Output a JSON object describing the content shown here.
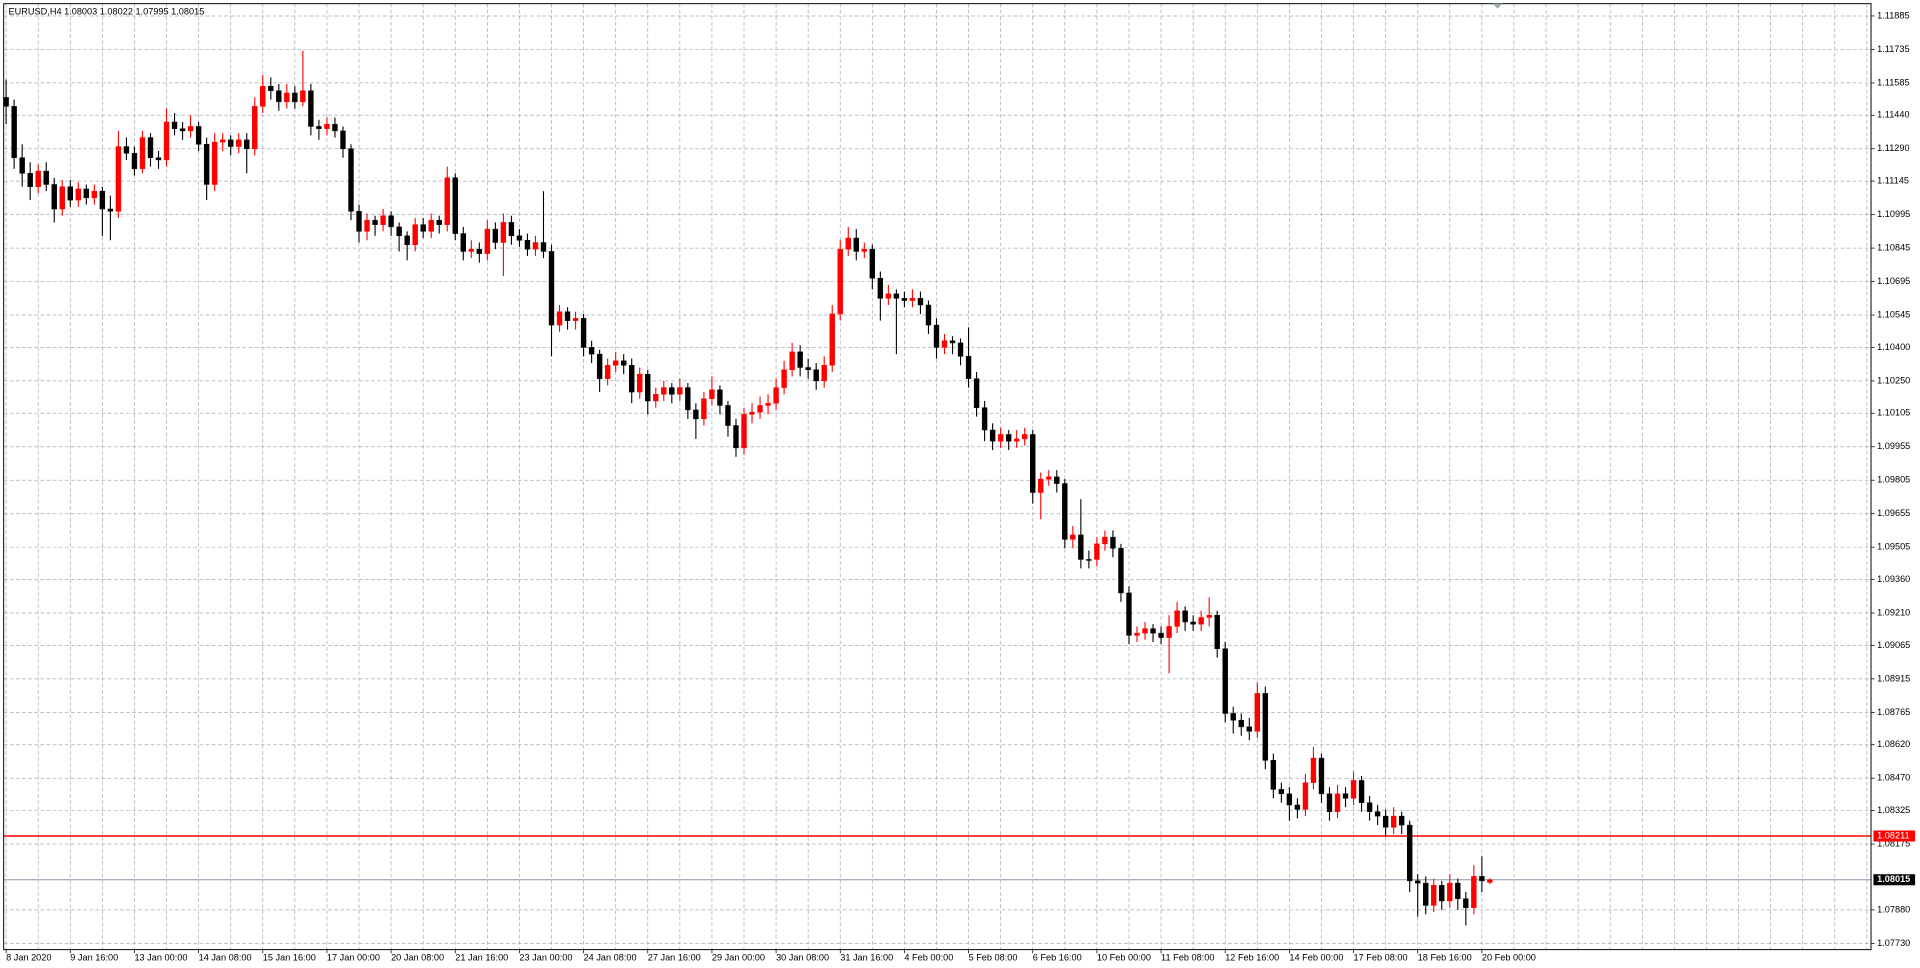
{
  "chart_data": {
    "type": "candlestick",
    "title": "EURUSD,H4  1.08003 1.08022 1.07995 1.08015",
    "up_color": "#ff0000",
    "down_color": "#000000",
    "grid": true,
    "grid_color": "#a3acbb",
    "ylim": [
      1.07702,
      1.1194
    ],
    "yticks": [
      1.11885,
      1.11735,
      1.11585,
      {
        "value": 1.1144,
        "label": "1.11440"
      },
      {
        "value": 1.1129,
        "label": "1.11290"
      },
      1.11145,
      1.10995,
      1.10845,
      1.10695,
      1.10545,
      {
        "value": 1.104,
        "label": "1.10400"
      },
      {
        "value": 1.1025,
        "label": "1.10250"
      },
      1.10105,
      1.09955,
      1.09805,
      1.09655,
      1.09505,
      {
        "value": 1.0936,
        "label": "1.09360"
      },
      {
        "value": 1.0921,
        "label": "1.09210"
      },
      1.09065,
      1.08915,
      1.08765,
      {
        "value": 1.0862,
        "label": "1.08620"
      },
      {
        "value": 1.0847,
        "label": "1.08470"
      },
      1.08325,
      1.08175,
      {
        "value": 1.0788,
        "label": "1.07880"
      },
      {
        "value": 1.0773,
        "label": "1.07730"
      }
    ],
    "price_lines": [
      {
        "value": 1.08211,
        "color": "#ff0000"
      }
    ],
    "bid_line": {
      "value": 1.08015,
      "color": "#8899aa"
    },
    "categories": [
      "8 Jan 2020",
      null,
      null,
      null,
      null,
      null,
      null,
      null,
      "9 Jan 16:00",
      null,
      null,
      null,
      null,
      null,
      null,
      null,
      "13 Jan 00:00",
      null,
      null,
      null,
      null,
      null,
      null,
      null,
      "14 Jan 08:00",
      null,
      null,
      null,
      null,
      null,
      null,
      null,
      "15 Jan 16:00",
      null,
      null,
      null,
      null,
      null,
      null,
      null,
      "17 Jan 00:00",
      null,
      null,
      null,
      null,
      null,
      null,
      null,
      "20 Jan 08:00",
      null,
      null,
      null,
      null,
      null,
      null,
      null,
      "21 Jan 16:00",
      null,
      null,
      null,
      null,
      null,
      null,
      null,
      "23 Jan 00:00",
      null,
      null,
      null,
      null,
      null,
      null,
      null,
      "24 Jan 08:00",
      null,
      null,
      null,
      null,
      null,
      null,
      null,
      "27 Jan 16:00",
      null,
      null,
      null,
      null,
      null,
      null,
      null,
      "29 Jan 00:00",
      null,
      null,
      null,
      null,
      null,
      null,
      null,
      "30 Jan 08:00",
      null,
      null,
      null,
      null,
      null,
      null,
      null,
      "31 Jan 16:00",
      null,
      null,
      null,
      null,
      null,
      null,
      null,
      "4 Feb 00:00",
      null,
      null,
      null,
      null,
      null,
      null,
      null,
      "5 Feb 08:00",
      null,
      null,
      null,
      null,
      null,
      null,
      null,
      "6 Feb 16:00",
      null,
      null,
      null,
      null,
      null,
      null,
      null,
      "10 Feb 00:00",
      null,
      null,
      null,
      null,
      null,
      null,
      null,
      "11 Feb 08:00",
      null,
      null,
      null,
      null,
      null,
      null,
      null,
      "12 Feb 16:00",
      null,
      null,
      null,
      null,
      null,
      null,
      null,
      "14 Feb 00:00",
      null,
      null,
      null,
      null,
      null,
      null,
      null,
      "17 Feb 08:00",
      null,
      null,
      null,
      null,
      null,
      null,
      null,
      "18 Feb 16:00",
      null,
      null,
      null,
      null,
      null,
      null,
      null,
      "20 Feb 00:00",
      null
    ],
    "ohlc": [
      [
        1.1152,
        1.116,
        1.114,
        1.1148
      ],
      [
        1.1148,
        1.1151,
        1.112,
        1.1125
      ],
      [
        1.1125,
        1.1131,
        1.1112,
        1.1118
      ],
      [
        1.1118,
        1.1123,
        1.1106,
        1.1112
      ],
      [
        1.1112,
        1.1122,
        1.1109,
        1.1119
      ],
      [
        1.1119,
        1.1123,
        1.111,
        1.1113
      ],
      [
        1.1113,
        1.1116,
        1.1096,
        1.1102
      ],
      [
        1.1102,
        1.1115,
        1.1099,
        1.1112
      ],
      [
        1.1112,
        1.1115,
        1.1103,
        1.1106
      ],
      [
        1.1106,
        1.1114,
        1.1103,
        1.1111
      ],
      [
        1.1111,
        1.1113,
        1.1104,
        1.1107
      ],
      [
        1.1107,
        1.1113,
        1.1104,
        1.111
      ],
      [
        1.111,
        1.1112,
        1.109,
        1.1102
      ],
      [
        1.1102,
        1.1108,
        1.1088,
        1.1101
      ],
      [
        1.1101,
        1.1137,
        1.1098,
        1.113
      ],
      [
        1.113,
        1.1134,
        1.1124,
        1.1127
      ],
      [
        1.1127,
        1.113,
        1.1117,
        1.112
      ],
      [
        1.112,
        1.1137,
        1.1118,
        1.1134
      ],
      [
        1.1134,
        1.1136,
        1.1121,
        1.1125
      ],
      [
        1.1125,
        1.1128,
        1.112,
        1.1124
      ],
      [
        1.1124,
        1.1147,
        1.1121,
        1.1141
      ],
      [
        1.1141,
        1.1145,
        1.1135,
        1.1138
      ],
      [
        1.1138,
        1.1141,
        1.1133,
        1.1137
      ],
      [
        1.1137,
        1.1144,
        1.1134,
        1.1139
      ],
      [
        1.1139,
        1.1141,
        1.1128,
        1.1131
      ],
      [
        1.1131,
        1.1134,
        1.1106,
        1.1113
      ],
      [
        1.1113,
        1.1136,
        1.111,
        1.1132
      ],
      [
        1.1132,
        1.1136,
        1.1128,
        1.1133
      ],
      [
        1.1133,
        1.1135,
        1.1126,
        1.113
      ],
      [
        1.113,
        1.1136,
        1.1127,
        1.1133
      ],
      [
        1.1133,
        1.1136,
        1.1118,
        1.1129
      ],
      [
        1.1129,
        1.1152,
        1.1126,
        1.1148
      ],
      [
        1.1148,
        1.1162,
        1.1145,
        1.1157
      ],
      [
        1.1157,
        1.1161,
        1.1151,
        1.1155
      ],
      [
        1.1155,
        1.1158,
        1.1146,
        1.115
      ],
      [
        1.115,
        1.1158,
        1.1147,
        1.1154
      ],
      [
        1.1154,
        1.1157,
        1.1147,
        1.115
      ],
      [
        1.115,
        1.1173,
        1.1148,
        1.1155
      ],
      [
        1.1155,
        1.1158,
        1.1135,
        1.1139
      ],
      [
        1.1139,
        1.1142,
        1.1133,
        1.1138
      ],
      [
        1.1138,
        1.1143,
        1.1135,
        1.114
      ],
      [
        1.114,
        1.1143,
        1.1134,
        1.1137
      ],
      [
        1.1137,
        1.1139,
        1.1125,
        1.1129
      ],
      [
        1.1129,
        1.1131,
        1.1097,
        1.1101
      ],
      [
        1.1101,
        1.1104,
        1.1087,
        1.1092
      ],
      [
        1.1092,
        1.11,
        1.1088,
        1.1097
      ],
      [
        1.1097,
        1.1099,
        1.109,
        1.1095
      ],
      [
        1.1095,
        1.1102,
        1.1092,
        1.1099
      ],
      [
        1.1099,
        1.1101,
        1.109,
        1.1094
      ],
      [
        1.1094,
        1.1096,
        1.1083,
        1.109
      ],
      [
        1.109,
        1.1092,
        1.1079,
        1.1086
      ],
      [
        1.1086,
        1.1098,
        1.1083,
        1.1095
      ],
      [
        1.1095,
        1.1098,
        1.1089,
        1.1092
      ],
      [
        1.1092,
        1.11,
        1.1089,
        1.1097
      ],
      [
        1.1097,
        1.1099,
        1.1091,
        1.1095
      ],
      [
        1.1095,
        1.1121,
        1.1092,
        1.1116
      ],
      [
        1.1116,
        1.1118,
        1.1088,
        1.1091
      ],
      [
        1.1091,
        1.1094,
        1.1079,
        1.1083
      ],
      [
        1.1083,
        1.1088,
        1.108,
        1.1084
      ],
      [
        1.1084,
        1.1087,
        1.1078,
        1.1082
      ],
      [
        1.1082,
        1.1097,
        1.1079,
        1.1093
      ],
      [
        1.1093,
        1.1096,
        1.1084,
        1.1087
      ],
      [
        1.1087,
        1.11,
        1.1072,
        1.1096
      ],
      [
        1.1096,
        1.1099,
        1.1086,
        1.109
      ],
      [
        1.109,
        1.1093,
        1.1085,
        1.1088
      ],
      [
        1.1088,
        1.1091,
        1.1081,
        1.1084
      ],
      [
        1.1084,
        1.109,
        1.1081,
        1.1087
      ],
      [
        1.1087,
        1.111,
        1.108,
        1.1083
      ],
      [
        1.1083,
        1.1086,
        1.1036,
        1.105
      ],
      [
        1.105,
        1.1059,
        1.1047,
        1.1056
      ],
      [
        1.1056,
        1.1058,
        1.1048,
        1.1052
      ],
      [
        1.1052,
        1.1056,
        1.1048,
        1.1053
      ],
      [
        1.1053,
        1.1055,
        1.1036,
        1.104
      ],
      [
        1.104,
        1.1043,
        1.1033,
        1.1037
      ],
      [
        1.1037,
        1.1039,
        1.102,
        1.1026
      ],
      [
        1.1026,
        1.1035,
        1.1023,
        1.1032
      ],
      [
        1.1032,
        1.1038,
        1.1029,
        1.1034
      ],
      [
        1.1034,
        1.1037,
        1.1028,
        1.1032
      ],
      [
        1.1032,
        1.1035,
        1.1015,
        1.102
      ],
      [
        1.102,
        1.1031,
        1.1017,
        1.1028
      ],
      [
        1.1028,
        1.103,
        1.101,
        1.1016
      ],
      [
        1.1016,
        1.1022,
        1.1013,
        1.1019
      ],
      [
        1.1019,
        1.1025,
        1.1016,
        1.1022
      ],
      [
        1.1022,
        1.1024,
        1.1015,
        1.1019
      ],
      [
        1.1019,
        1.1026,
        1.1016,
        1.1022
      ],
      [
        1.1022,
        1.1024,
        1.1008,
        1.1012
      ],
      [
        1.1012,
        1.1015,
        1.0999,
        1.1008
      ],
      [
        1.1008,
        1.102,
        1.1005,
        1.1017
      ],
      [
        1.1017,
        1.1027,
        1.1014,
        1.1021
      ],
      [
        1.1021,
        1.1023,
        1.101,
        1.1014
      ],
      [
        1.1014,
        1.1016,
        1.1,
        1.1005
      ],
      [
        1.1005,
        1.1008,
        1.0991,
        1.0995
      ],
      [
        1.0995,
        1.1013,
        1.0992,
        1.101
      ],
      [
        1.101,
        1.1015,
        1.1006,
        1.1011
      ],
      [
        1.1011,
        1.1018,
        1.1008,
        1.1014
      ],
      [
        1.1014,
        1.1019,
        1.101,
        1.1015
      ],
      [
        1.1015,
        1.1026,
        1.1012,
        1.1022
      ],
      [
        1.1022,
        1.1034,
        1.1019,
        1.103
      ],
      [
        1.103,
        1.1042,
        1.1027,
        1.1038
      ],
      [
        1.1038,
        1.1041,
        1.1027,
        1.1031
      ],
      [
        1.1031,
        1.1035,
        1.1026,
        1.103
      ],
      [
        1.103,
        1.1033,
        1.1021,
        1.1025
      ],
      [
        1.1025,
        1.1036,
        1.1022,
        1.1032
      ],
      [
        1.1032,
        1.1059,
        1.1029,
        1.1055
      ],
      [
        1.1055,
        1.1088,
        1.1052,
        1.1084
      ],
      [
        1.1084,
        1.1094,
        1.1081,
        1.1089
      ],
      [
        1.1089,
        1.1093,
        1.1079,
        1.1083
      ],
      [
        1.1083,
        1.1087,
        1.108,
        1.1084
      ],
      [
        1.1084,
        1.1086,
        1.1066,
        1.1071
      ],
      [
        1.1071,
        1.1074,
        1.1052,
        1.1062
      ],
      [
        1.1062,
        1.1068,
        1.1059,
        1.1064
      ],
      [
        1.1064,
        1.1066,
        1.1037,
        1.1062
      ],
      [
        1.1062,
        1.1065,
        1.1058,
        1.1061
      ],
      [
        1.1061,
        1.1066,
        1.1058,
        1.1062
      ],
      [
        1.1062,
        1.1065,
        1.1055,
        1.1059
      ],
      [
        1.1059,
        1.1061,
        1.1046,
        1.105
      ],
      [
        1.105,
        1.1053,
        1.1035,
        1.104
      ],
      [
        1.104,
        1.1046,
        1.1037,
        1.1043
      ],
      [
        1.1043,
        1.1045,
        1.1037,
        1.1042
      ],
      [
        1.1042,
        1.1044,
        1.1032,
        1.1036
      ],
      [
        1.1036,
        1.1049,
        1.1022,
        1.1026
      ],
      [
        1.1026,
        1.1029,
        1.1009,
        1.1013
      ],
      [
        1.1013,
        1.1016,
        1.0998,
        1.1003
      ],
      [
        1.1003,
        1.1006,
        1.0994,
        1.0998
      ],
      [
        1.0998,
        1.1004,
        1.0995,
        1.1001
      ],
      [
        1.1001,
        1.1003,
        1.0994,
        1.0998
      ],
      [
        1.0998,
        1.1003,
        1.0995,
        1.0999
      ],
      [
        1.0999,
        1.1004,
        1.0996,
        1.1001
      ],
      [
        1.1001,
        1.1003,
        1.097,
        1.0975
      ],
      [
        1.0975,
        1.0984,
        1.0963,
        1.0981
      ],
      [
        1.0981,
        1.0985,
        1.0978,
        1.0982
      ],
      [
        1.0982,
        1.0985,
        1.0975,
        1.0979
      ],
      [
        1.0979,
        1.0981,
        1.095,
        1.0954
      ],
      [
        1.0954,
        1.096,
        1.095,
        1.0956
      ],
      [
        1.0956,
        1.0972,
        1.0941,
        1.0945
      ],
      [
        1.0945,
        1.0949,
        1.0941,
        1.0945
      ],
      [
        1.0945,
        1.0955,
        1.0942,
        1.0952
      ],
      [
        1.0952,
        1.0958,
        1.0949,
        1.0955
      ],
      [
        1.0955,
        1.0958,
        1.0946,
        1.095
      ],
      [
        1.095,
        1.0952,
        1.0926,
        1.093
      ],
      [
        1.093,
        1.0933,
        1.0907,
        1.0911
      ],
      [
        1.0911,
        1.0915,
        1.0908,
        1.0912
      ],
      [
        1.0912,
        1.0917,
        1.0909,
        1.0914
      ],
      [
        1.0914,
        1.0916,
        1.0908,
        1.0912
      ],
      [
        1.0912,
        1.0915,
        1.0907,
        1.091
      ],
      [
        1.091,
        1.092,
        1.0894,
        1.0915
      ],
      [
        1.0915,
        1.0926,
        1.0912,
        1.0922
      ],
      [
        1.0922,
        1.0924,
        1.0913,
        1.0917
      ],
      [
        1.0917,
        1.092,
        1.0913,
        1.0916
      ],
      [
        1.0916,
        1.0922,
        1.0913,
        1.0919
      ],
      [
        1.0919,
        1.0928,
        1.0915,
        1.092
      ],
      [
        1.092,
        1.0922,
        1.0901,
        1.0905
      ],
      [
        1.0905,
        1.0908,
        1.0872,
        1.0876
      ],
      [
        1.0876,
        1.0879,
        1.0867,
        1.0873
      ],
      [
        1.0873,
        1.0876,
        1.0866,
        1.087
      ],
      [
        1.087,
        1.0874,
        1.0864,
        1.0868
      ],
      [
        1.0868,
        1.089,
        1.0865,
        1.0885
      ],
      [
        1.0885,
        1.0888,
        1.0851,
        1.0855
      ],
      [
        1.0855,
        1.0858,
        1.0838,
        1.0842
      ],
      [
        1.0842,
        1.0845,
        1.0836,
        1.084
      ],
      [
        1.084,
        1.0843,
        1.0828,
        1.0835
      ],
      [
        1.0835,
        1.0838,
        1.0829,
        1.0833
      ],
      [
        1.0833,
        1.0849,
        1.083,
        1.0845
      ],
      [
        1.0845,
        1.0861,
        1.0842,
        1.0856
      ],
      [
        1.0856,
        1.0858,
        1.0836,
        1.084
      ],
      [
        1.084,
        1.0843,
        1.0828,
        1.0832
      ],
      [
        1.0832,
        1.0844,
        1.0829,
        1.084
      ],
      [
        1.084,
        1.0843,
        1.0834,
        1.0838
      ],
      [
        1.0838,
        1.085,
        1.0835,
        1.0846
      ],
      [
        1.0846,
        1.0848,
        1.0832,
        1.0836
      ],
      [
        1.0836,
        1.0839,
        1.0828,
        1.0832
      ],
      [
        1.0832,
        1.0835,
        1.0826,
        1.083
      ],
      [
        1.083,
        1.0833,
        1.0821,
        1.0825
      ],
      [
        1.0825,
        1.0834,
        1.0822,
        1.083
      ],
      [
        1.083,
        1.0832,
        1.0822,
        1.0826
      ],
      [
        1.0826,
        1.0828,
        1.0796,
        1.0801
      ],
      [
        1.0801,
        1.0804,
        1.0785,
        1.08
      ],
      [
        1.08,
        1.0803,
        1.0786,
        1.079
      ],
      [
        1.079,
        1.0802,
        1.0787,
        1.0799
      ],
      [
        1.0799,
        1.0801,
        1.0788,
        1.0792
      ],
      [
        1.0792,
        1.0804,
        1.0789,
        1.08
      ],
      [
        1.08,
        1.0802,
        1.0788,
        1.0793
      ],
      [
        1.0793,
        1.0796,
        1.0781,
        1.0789
      ],
      [
        1.0789,
        1.0808,
        1.0786,
        1.0803
      ],
      [
        1.0803,
        1.0812,
        1.0796,
        1.0801
      ],
      [
        1.08003,
        1.08022,
        1.07995,
        1.08015
      ]
    ]
  }
}
